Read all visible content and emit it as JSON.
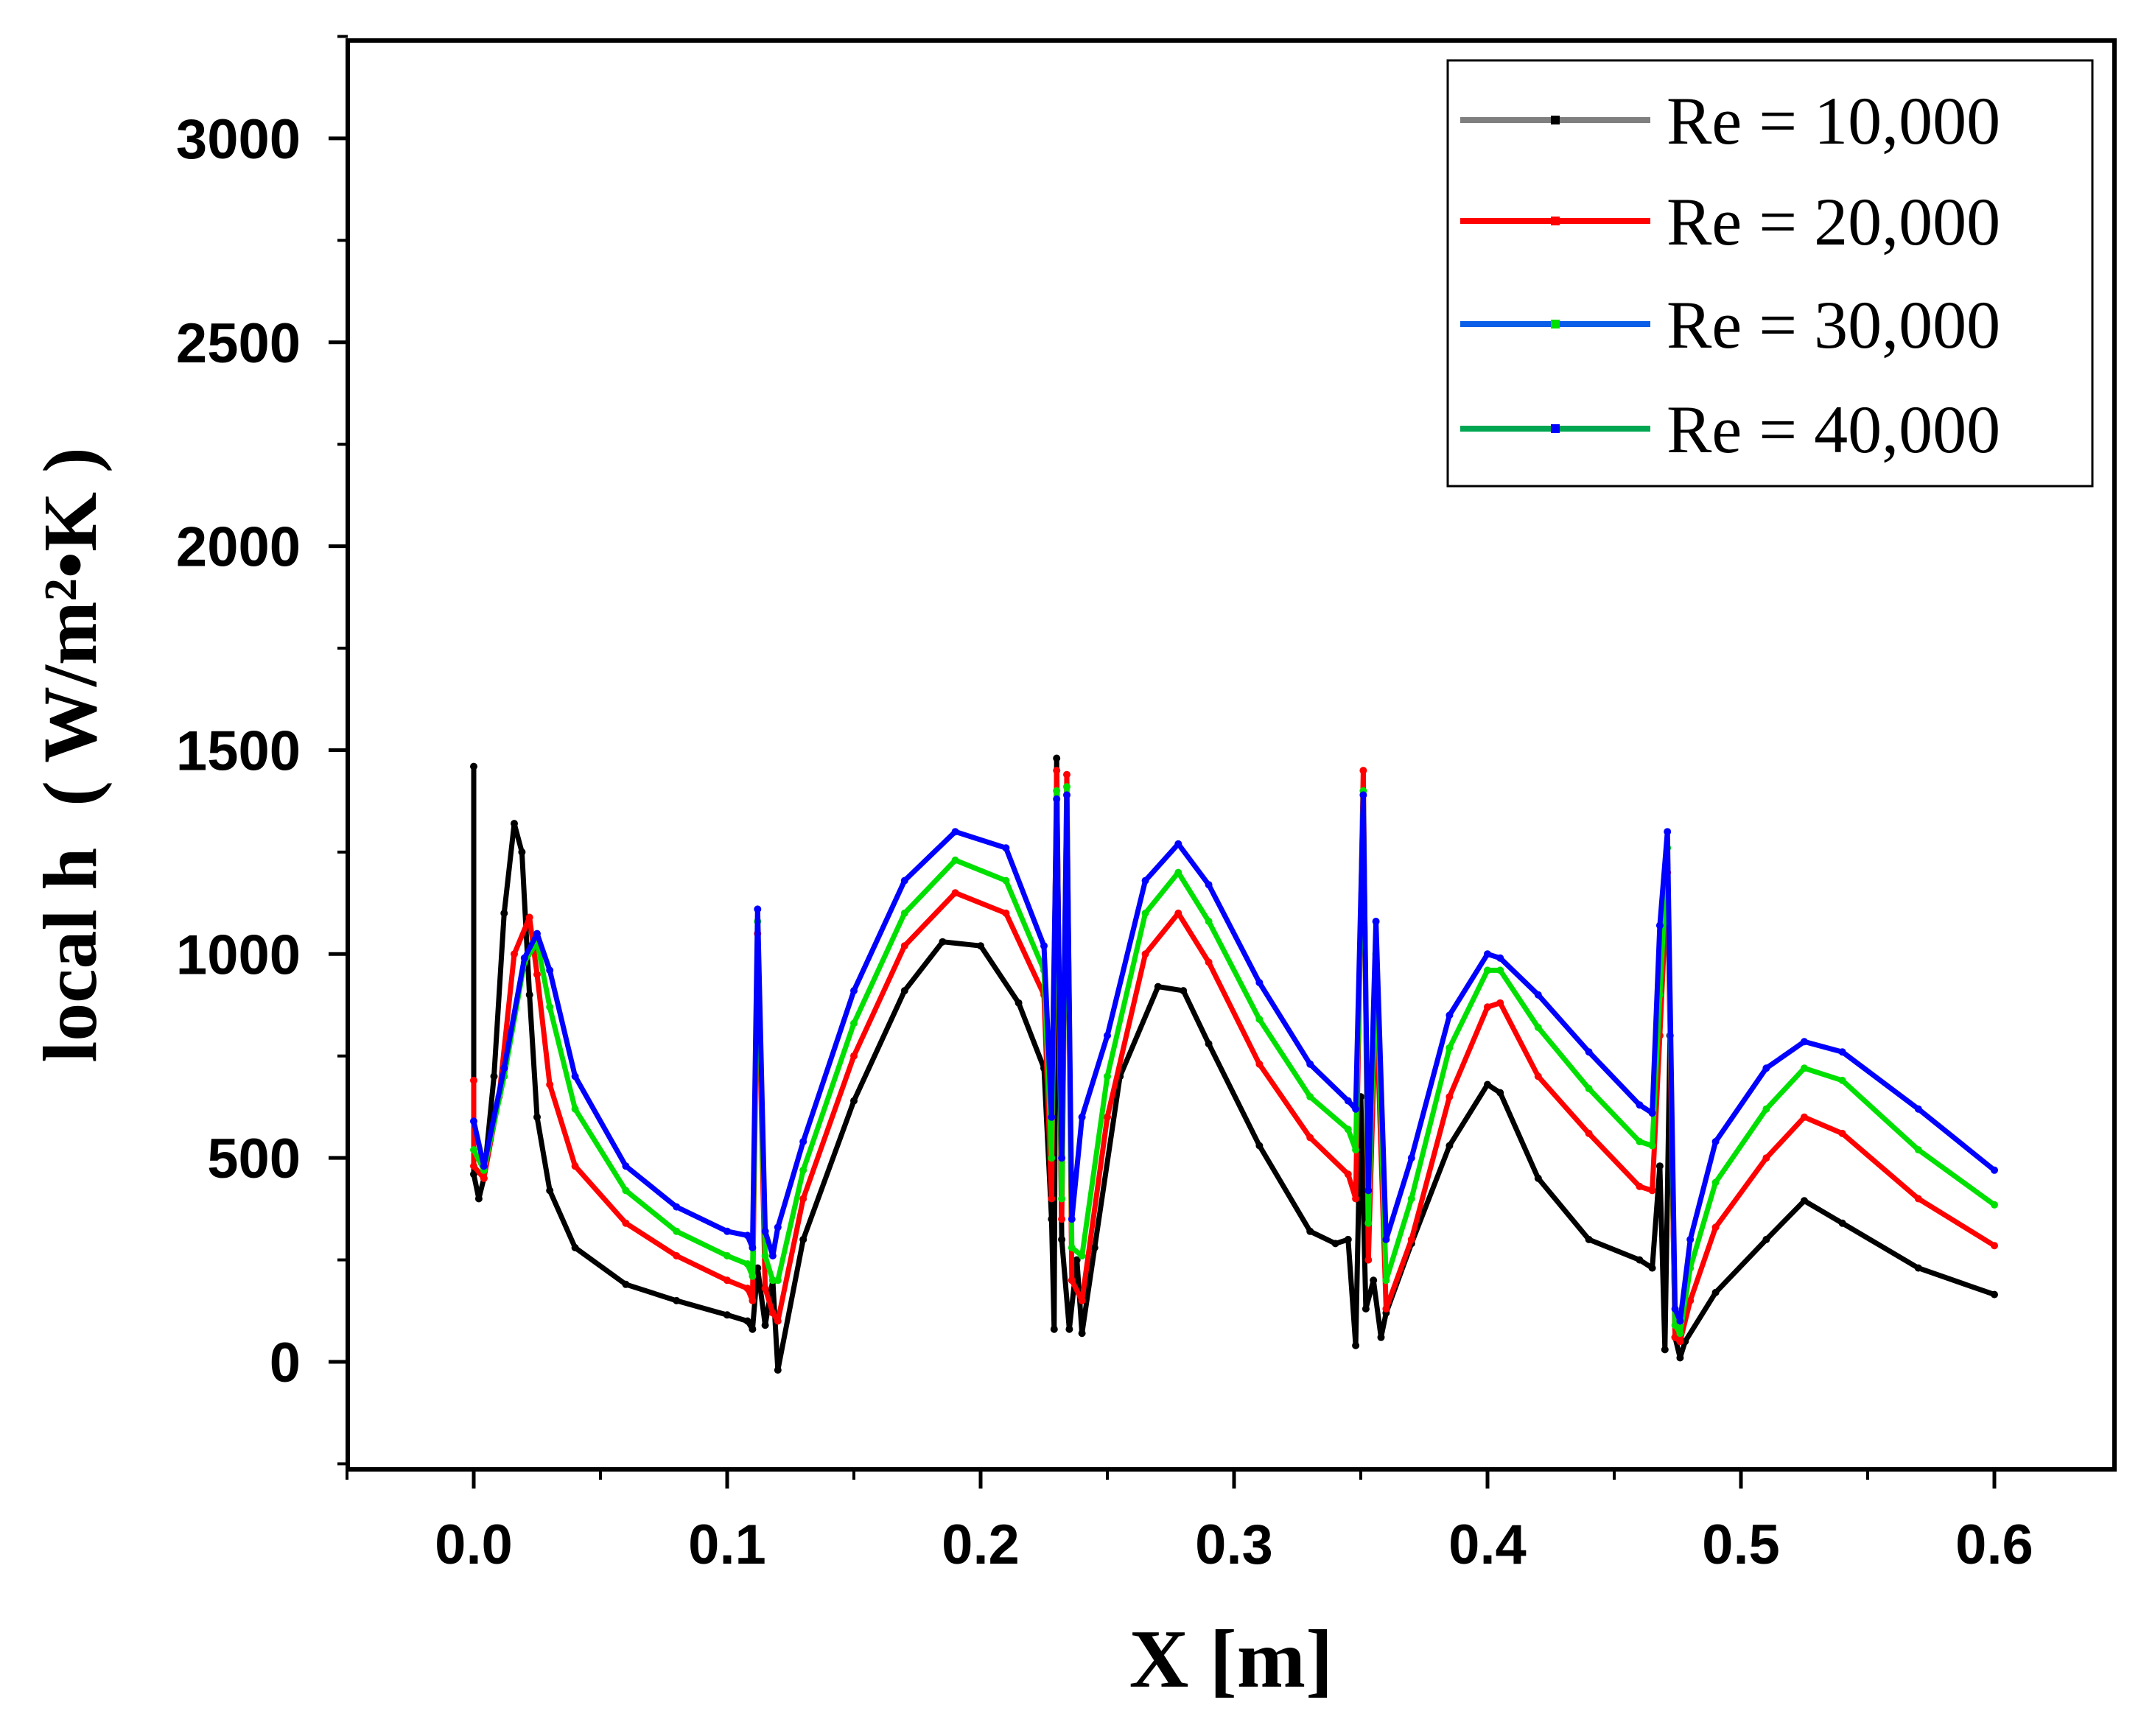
{
  "chart_data": {
    "type": "line",
    "title": "",
    "xlabel": "X [m]",
    "ylabel": "local h",
    "ylabel_units": "( W/m²•K )",
    "xlim": [
      -0.05,
      0.65
    ],
    "ylim": [
      -250,
      3250
    ],
    "xticks": [
      0.0,
      0.1,
      0.2,
      0.3,
      0.4,
      0.5,
      0.6
    ],
    "xtick_labels": [
      "0.0",
      "0.1",
      "0.2",
      "0.3",
      "0.4",
      "0.5",
      "0.6"
    ],
    "yticks": [
      0,
      500,
      1000,
      1500,
      2000,
      2500,
      3000
    ],
    "ytick_labels": [
      "0",
      "500",
      "1000",
      "1500",
      "2000",
      "2500",
      "3000"
    ],
    "grid": false,
    "legend_position": "top-right",
    "series": [
      {
        "name": "Re = 10,000",
        "color": "#000000",
        "legend_color": "#7f7f7f",
        "x": [
          0.0,
          0.0,
          0.002,
          0.004,
          0.008,
          0.012,
          0.016,
          0.019,
          0.022,
          0.025,
          0.03,
          0.04,
          0.06,
          0.08,
          0.1,
          0.108,
          0.11,
          0.112,
          0.115,
          0.118,
          0.12,
          0.13,
          0.15,
          0.17,
          0.185,
          0.2,
          0.215,
          0.225,
          0.228,
          0.229,
          0.23,
          0.232,
          0.235,
          0.238,
          0.24,
          0.245,
          0.255,
          0.27,
          0.28,
          0.29,
          0.31,
          0.33,
          0.34,
          0.345,
          0.348,
          0.35,
          0.352,
          0.355,
          0.358,
          0.36,
          0.37,
          0.385,
          0.4,
          0.405,
          0.42,
          0.44,
          0.46,
          0.465,
          0.468,
          0.47,
          0.472,
          0.474,
          0.476,
          0.478,
          0.49,
          0.51,
          0.525,
          0.54,
          0.57,
          0.6
        ],
        "y": [
          1460,
          460,
          400,
          450,
          700,
          1100,
          1320,
          1250,
          900,
          600,
          420,
          280,
          190,
          150,
          115,
          100,
          80,
          230,
          90,
          200,
          -20,
          300,
          640,
          910,
          1030,
          1020,
          880,
          720,
          350,
          80,
          1480,
          300,
          80,
          250,
          70,
          280,
          700,
          920,
          910,
          780,
          530,
          320,
          290,
          300,
          40,
          650,
          130,
          200,
          60,
          120,
          290,
          530,
          680,
          660,
          450,
          300,
          250,
          230,
          480,
          30,
          800,
          60,
          10,
          50,
          170,
          300,
          395,
          340,
          230,
          165
        ]
      },
      {
        "name": "Re = 20,000",
        "color": "#ff0000",
        "legend_color": "#ff0000",
        "x": [
          0.0,
          0.0,
          0.004,
          0.01,
          0.016,
          0.022,
          0.025,
          0.03,
          0.04,
          0.06,
          0.08,
          0.1,
          0.108,
          0.11,
          0.112,
          0.115,
          0.118,
          0.12,
          0.13,
          0.15,
          0.17,
          0.19,
          0.21,
          0.225,
          0.228,
          0.23,
          0.232,
          0.234,
          0.236,
          0.24,
          0.25,
          0.265,
          0.278,
          0.29,
          0.31,
          0.33,
          0.345,
          0.348,
          0.351,
          0.353,
          0.356,
          0.36,
          0.37,
          0.385,
          0.4,
          0.405,
          0.42,
          0.44,
          0.46,
          0.465,
          0.468,
          0.471,
          0.474,
          0.476,
          0.48,
          0.49,
          0.51,
          0.525,
          0.54,
          0.57,
          0.6
        ],
        "y": [
          690,
          480,
          450,
          650,
          1000,
          1090,
          950,
          680,
          480,
          340,
          260,
          200,
          180,
          150,
          1050,
          180,
          120,
          100,
          400,
          750,
          1020,
          1150,
          1100,
          900,
          400,
          1450,
          350,
          1440,
          200,
          150,
          600,
          1000,
          1100,
          980,
          730,
          550,
          460,
          400,
          1450,
          250,
          900,
          130,
          300,
          650,
          870,
          880,
          700,
          560,
          430,
          420,
          800,
          1200,
          60,
          50,
          150,
          330,
          500,
          600,
          560,
          400,
          285
        ]
      },
      {
        "name": "Re = 30,000",
        "color": "#00e000",
        "legend_color": "#0a5ee8",
        "x": [
          0.0,
          0.004,
          0.012,
          0.02,
          0.025,
          0.03,
          0.04,
          0.06,
          0.08,
          0.1,
          0.108,
          0.11,
          0.112,
          0.115,
          0.118,
          0.12,
          0.13,
          0.15,
          0.17,
          0.19,
          0.21,
          0.225,
          0.228,
          0.23,
          0.232,
          0.234,
          0.236,
          0.24,
          0.25,
          0.265,
          0.278,
          0.29,
          0.31,
          0.33,
          0.345,
          0.348,
          0.351,
          0.353,
          0.356,
          0.36,
          0.37,
          0.385,
          0.4,
          0.405,
          0.42,
          0.44,
          0.46,
          0.465,
          0.468,
          0.471,
          0.474,
          0.476,
          0.48,
          0.49,
          0.51,
          0.525,
          0.54,
          0.57,
          0.6
        ],
        "y": [
          520,
          470,
          700,
          980,
          1030,
          870,
          620,
          420,
          320,
          260,
          240,
          210,
          1080,
          260,
          200,
          200,
          470,
          830,
          1100,
          1230,
          1180,
          960,
          500,
          1400,
          400,
          1410,
          280,
          260,
          700,
          1100,
          1200,
          1080,
          840,
          650,
          570,
          520,
          1400,
          340,
          1000,
          200,
          400,
          770,
          960,
          960,
          820,
          670,
          540,
          530,
          900,
          1260,
          90,
          70,
          230,
          440,
          620,
          720,
          690,
          520,
          385
        ]
      },
      {
        "name": "Re = 40,000",
        "color": "#0000ff",
        "legend_color": "#00a651",
        "x": [
          0.0,
          0.004,
          0.012,
          0.02,
          0.025,
          0.03,
          0.04,
          0.06,
          0.08,
          0.1,
          0.108,
          0.11,
          0.112,
          0.115,
          0.118,
          0.12,
          0.13,
          0.15,
          0.17,
          0.19,
          0.21,
          0.225,
          0.228,
          0.23,
          0.232,
          0.234,
          0.236,
          0.24,
          0.25,
          0.265,
          0.278,
          0.29,
          0.31,
          0.33,
          0.345,
          0.348,
          0.351,
          0.353,
          0.356,
          0.36,
          0.37,
          0.385,
          0.4,
          0.405,
          0.42,
          0.44,
          0.46,
          0.465,
          0.468,
          0.471,
          0.474,
          0.476,
          0.48,
          0.49,
          0.51,
          0.525,
          0.54,
          0.57,
          0.6
        ],
        "y": [
          590,
          480,
          720,
          990,
          1050,
          960,
          700,
          480,
          380,
          320,
          310,
          280,
          1110,
          320,
          260,
          330,
          540,
          910,
          1180,
          1300,
          1260,
          1020,
          600,
          1380,
          500,
          1390,
          350,
          600,
          800,
          1180,
          1270,
          1170,
          930,
          730,
          640,
          620,
          1390,
          420,
          1080,
          300,
          500,
          850,
          1000,
          990,
          900,
          760,
          630,
          610,
          1070,
          1300,
          130,
          100,
          300,
          540,
          720,
          785,
          760,
          620,
          470
        ]
      }
    ]
  }
}
